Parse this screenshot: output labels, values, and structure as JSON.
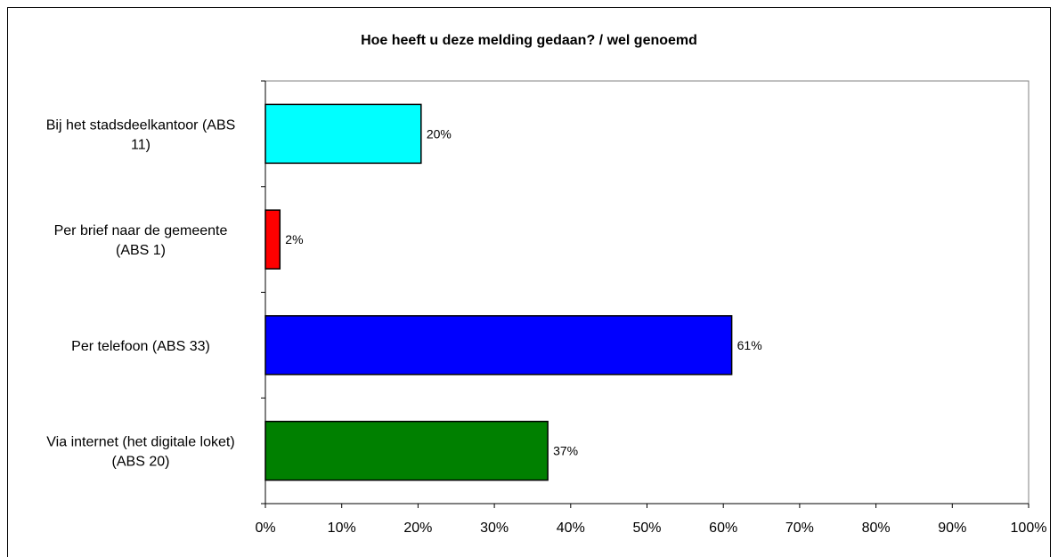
{
  "chart_data": {
    "type": "bar",
    "orientation": "horizontal",
    "title": "Hoe heeft u deze melding gedaan? / wel genoemd",
    "xlabel": "",
    "ylabel": "",
    "xlim": [
      0,
      100
    ],
    "grid": false,
    "legend": "none",
    "categories": [
      [
        "Bij het stadsdeelkantoor (ABS",
        "11)"
      ],
      [
        "Per brief naar de gemeente",
        "(ABS 1)"
      ],
      [
        "Per telefoon (ABS 33)"
      ],
      [
        "Via internet (het digitale loket)",
        "(ABS 20)"
      ]
    ],
    "values": [
      20.4,
      1.9,
      61.1,
      37.0
    ],
    "data_labels": [
      "20%",
      "2%",
      "61%",
      "37%"
    ],
    "colors": [
      "#00FFFF",
      "#FF0000",
      "#0000FF",
      "#008000"
    ],
    "x_ticks": [
      "0%",
      "10%",
      "20%",
      "30%",
      "40%",
      "50%",
      "60%",
      "70%",
      "80%",
      "90%",
      "100%"
    ]
  }
}
